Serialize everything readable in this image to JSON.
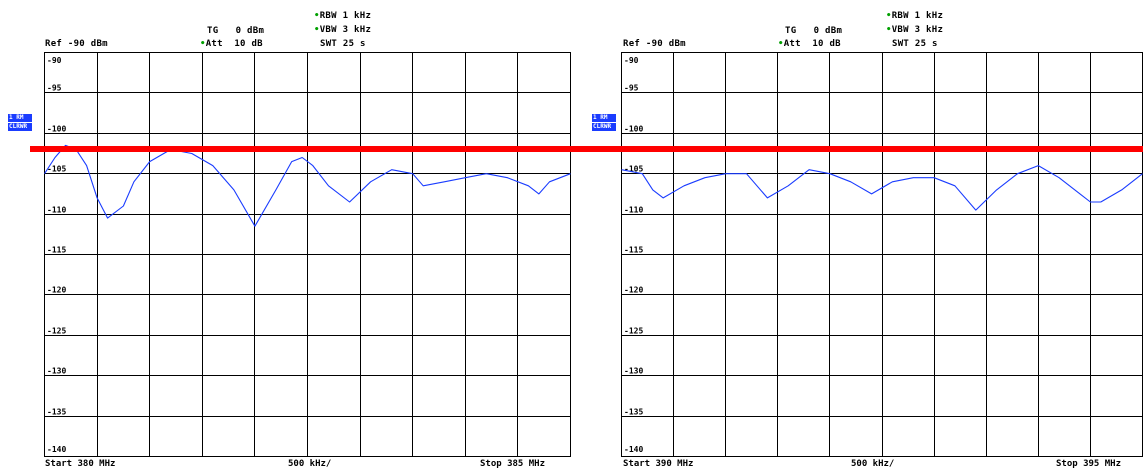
{
  "panels": [
    {
      "header": {
        "ref": "Ref -90 dBm",
        "tg_label": "TG",
        "tg_value": "0 dBm",
        "att_label": "Att",
        "att_value": "10 dB",
        "rbw": "RBW 1 kHz",
        "vbw": "VBW 3 kHz",
        "swt": "SWT 25 s"
      },
      "side": {
        "trace": "1 RM",
        "mode": "CLRWR"
      },
      "footer": {
        "start": "Start 380 MHz",
        "span": "500 kHz/",
        "stop": "Stop 385 MHz"
      }
    },
    {
      "header": {
        "ref": "Ref -90 dBm",
        "tg_label": "TG",
        "tg_value": "0 dBm",
        "att_label": "Att",
        "att_value": "10 dB",
        "rbw": "RBW 1 kHz",
        "vbw": "VBW 3 kHz",
        "swt": "SWT 25 s"
      },
      "side": {
        "trace": "1 RM",
        "mode": "CLRWR"
      },
      "footer": {
        "start": "Start 390 MHz",
        "span": "500 kHz/",
        "stop": "Stop 395 MHz"
      }
    }
  ],
  "colors": {
    "trace": "#1a3cff",
    "limit": "#ff0000",
    "grid": "#000000",
    "status_dot": "#00a000"
  },
  "chart_data": [
    {
      "type": "line",
      "x_range_mhz": [
        380,
        385
      ],
      "ylim": [
        -140,
        -90
      ],
      "yticks": [
        "-90",
        "-95",
        "-100",
        "-105",
        "-110",
        "-115",
        "-120",
        "-125",
        "-130",
        "-135",
        "-140"
      ],
      "limit_line_dbm": -101.5,
      "series": [
        {
          "x": [
            380.0,
            380.1,
            380.2,
            380.3,
            380.4,
            380.5,
            380.6,
            380.75,
            380.85,
            381.0,
            381.2,
            381.4,
            381.6,
            381.8,
            382.0,
            382.2,
            382.35,
            382.45,
            382.55,
            382.7,
            382.9,
            383.1,
            383.3,
            383.5,
            383.6,
            383.8,
            384.0,
            384.2,
            384.4,
            384.6,
            384.7,
            384.8,
            385.0
          ],
          "y": [
            -105,
            -103,
            -101.5,
            -102,
            -104,
            -108,
            -110.5,
            -109,
            -106,
            -103.5,
            -102,
            -102.5,
            -104,
            -107,
            -111.5,
            -107,
            -103.5,
            -103,
            -104,
            -106.5,
            -108.5,
            -106,
            -104.5,
            -105,
            -106.5,
            -106,
            -105.5,
            -105,
            -105.5,
            -106.5,
            -107.5,
            -106,
            -105
          ]
        }
      ]
    },
    {
      "type": "line",
      "x_range_mhz": [
        390,
        395
      ],
      "ylim": [
        -140,
        -90
      ],
      "yticks": [
        "-90",
        "-95",
        "-100",
        "-105",
        "-110",
        "-115",
        "-120",
        "-125",
        "-130",
        "-135",
        "-140"
      ],
      "limit_line_dbm": -101.5,
      "series": [
        {
          "x": [
            390.0,
            390.2,
            390.3,
            390.4,
            390.6,
            390.8,
            391.0,
            391.2,
            391.4,
            391.6,
            391.8,
            392.0,
            392.2,
            392.4,
            392.6,
            392.8,
            393.0,
            393.2,
            393.4,
            393.6,
            393.8,
            394.0,
            394.2,
            394.4,
            394.5,
            394.6,
            394.8,
            395.0
          ],
          "y": [
            -104.5,
            -105,
            -107,
            -108,
            -106.5,
            -105.5,
            -105,
            -105,
            -108,
            -106.5,
            -104.5,
            -105,
            -106,
            -107.5,
            -106,
            -105.5,
            -105.5,
            -106.5,
            -109.5,
            -107,
            -105,
            -104,
            -105.5,
            -107.5,
            -108.5,
            -108.5,
            -107,
            -105
          ]
        }
      ]
    }
  ]
}
